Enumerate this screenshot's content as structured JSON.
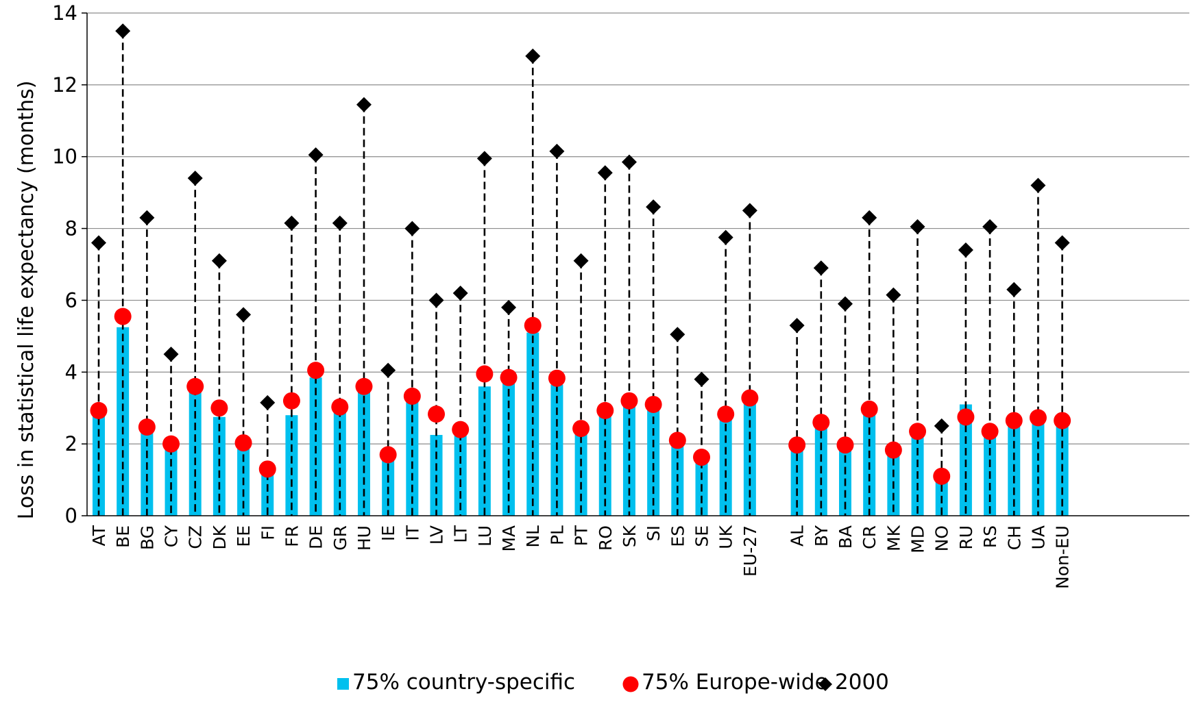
{
  "chart_data": {
    "type": "bar",
    "ylabel": "Loss in statistical life expectancy (months)",
    "xlabel": "",
    "ylim": [
      0,
      14
    ],
    "yticks": [
      0,
      2,
      4,
      6,
      8,
      10,
      12,
      14
    ],
    "grid": true,
    "legend_position": "bottom",
    "categories": [
      "AT",
      "BE",
      "BG",
      "CY",
      "CZ",
      "DK",
      "EE",
      "FI",
      "FR",
      "DE",
      "GR",
      "HU",
      "IE",
      "IT",
      "LV",
      "LT",
      "LU",
      "MA",
      "NL",
      "PL",
      "PT",
      "RO",
      "SK",
      "SI",
      "ES",
      "SE",
      "UK",
      "EU-27",
      "AL",
      "BY",
      "BA",
      "CR",
      "MK",
      "MD",
      "NO",
      "RU",
      "RS",
      "CH",
      "UA",
      "Non-EU"
    ],
    "group_gap_after_index": 27,
    "series": [
      {
        "name": "75% country-specific",
        "mark": "bar",
        "color": "#00c0ee",
        "values": [
          2.9,
          5.25,
          2.4,
          1.95,
          3.45,
          2.75,
          2.0,
          1.25,
          2.8,
          3.85,
          2.95,
          3.5,
          1.7,
          3.2,
          2.25,
          2.3,
          3.6,
          3.75,
          5.1,
          3.65,
          2.35,
          2.85,
          3.1,
          3.0,
          2.05,
          1.55,
          2.75,
          3.2,
          1.95,
          2.55,
          1.95,
          2.9,
          1.75,
          2.3,
          1.05,
          3.1,
          2.3,
          2.6,
          2.65,
          2.6
        ]
      },
      {
        "name": "75% Europe-wide",
        "mark": "circle",
        "color": "#ff0000",
        "values": [
          2.93,
          5.55,
          2.47,
          2.0,
          3.6,
          3.0,
          2.03,
          1.3,
          3.2,
          4.05,
          3.03,
          3.6,
          1.7,
          3.33,
          2.83,
          2.4,
          3.95,
          3.85,
          5.3,
          3.83,
          2.43,
          2.93,
          3.2,
          3.1,
          2.1,
          1.63,
          2.83,
          3.28,
          1.97,
          2.6,
          1.97,
          2.97,
          1.83,
          2.35,
          1.1,
          2.75,
          2.35,
          2.65,
          2.73,
          2.65
        ]
      },
      {
        "name": "2000",
        "mark": "diamond",
        "color": "#000000",
        "values": [
          7.6,
          13.5,
          8.3,
          4.5,
          9.4,
          7.1,
          5.6,
          3.15,
          8.15,
          10.05,
          8.15,
          11.45,
          4.05,
          8.0,
          6.0,
          6.2,
          9.95,
          5.8,
          12.8,
          10.15,
          7.1,
          9.55,
          9.85,
          8.6,
          5.05,
          3.8,
          7.75,
          8.5,
          5.3,
          6.9,
          5.9,
          8.3,
          6.15,
          8.05,
          2.5,
          7.4,
          8.05,
          6.3,
          9.2,
          7.6
        ]
      }
    ]
  }
}
